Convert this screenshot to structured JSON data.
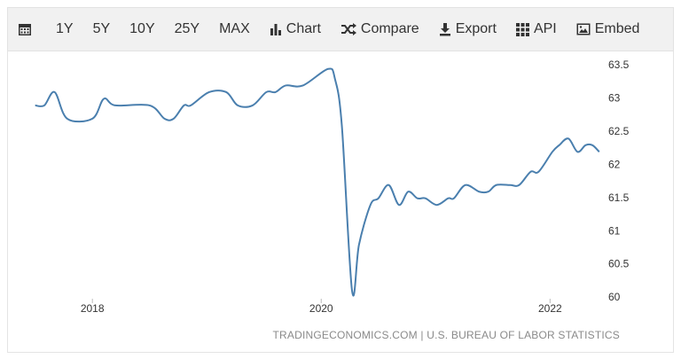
{
  "toolbar": {
    "items": [
      "1Y",
      "5Y",
      "10Y",
      "25Y",
      "MAX",
      "Chart",
      "Compare",
      "Export",
      "API",
      "Embed"
    ]
  },
  "chart_data": {
    "type": "line",
    "color": "#4a7fae",
    "x": [
      2017.5,
      2017.58,
      2017.67,
      2017.78,
      2018.0,
      2018.1,
      2018.2,
      2018.5,
      2018.63,
      2018.71,
      2018.8,
      2018.86,
      2019.02,
      2019.17,
      2019.27,
      2019.4,
      2019.52,
      2019.6,
      2019.69,
      2019.84,
      2020.06,
      2020.12,
      2020.18,
      2020.27,
      2020.33,
      2020.43,
      2020.5,
      2020.59,
      2020.68,
      2020.76,
      2020.84,
      2020.91,
      2021.01,
      2021.11,
      2021.16,
      2021.26,
      2021.38,
      2021.46,
      2021.53,
      2021.65,
      2021.73,
      2021.83,
      2021.9,
      2022.02,
      2022.08,
      2022.16,
      2022.24,
      2022.31,
      2022.37,
      2022.43
    ],
    "values": [
      62.9,
      62.9,
      63.1,
      62.7,
      62.7,
      63.0,
      62.9,
      62.9,
      62.7,
      62.7,
      62.9,
      62.9,
      63.1,
      63.1,
      62.9,
      62.9,
      63.1,
      63.1,
      63.2,
      63.2,
      63.45,
      63.3,
      62.6,
      60.1,
      60.8,
      61.4,
      61.5,
      61.7,
      61.4,
      61.6,
      61.5,
      61.5,
      61.4,
      61.5,
      61.5,
      61.7,
      61.6,
      61.6,
      61.7,
      61.7,
      61.7,
      61.9,
      61.9,
      62.2,
      62.3,
      62.4,
      62.2,
      62.3,
      62.3,
      62.2
    ],
    "xlim": [
      2017.27,
      2022.54
    ],
    "xticks": [
      2018,
      2020,
      2022
    ],
    "ylim": [
      60,
      63.5
    ],
    "yticks": [
      60,
      60.5,
      61,
      61.5,
      62,
      62.5,
      63,
      63.5
    ],
    "grid": false,
    "source": "TRADINGECONOMICS.COM | U.S. BUREAU OF LABOR STATISTICS"
  }
}
